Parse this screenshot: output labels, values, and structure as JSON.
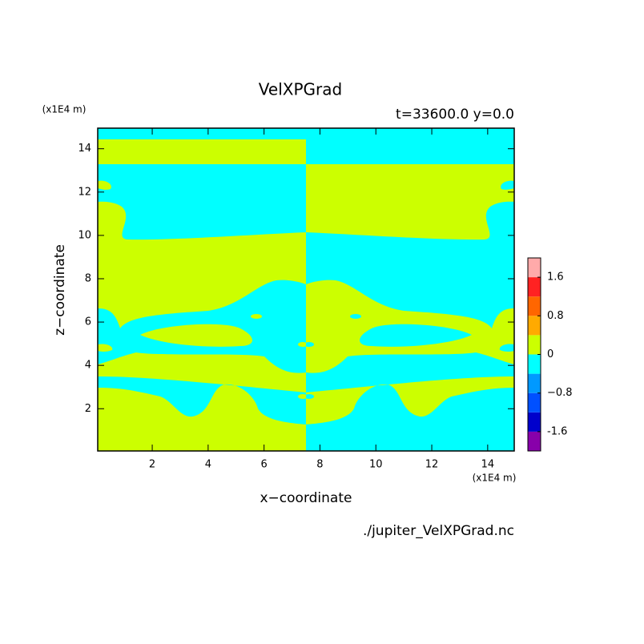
{
  "chart_data": {
    "type": "contour",
    "title": "VelXPGrad",
    "subtitle": "t=33600.0 y=0.0",
    "x_label": "x−coordinate",
    "y_label": "z−coordinate",
    "x_unit": "(x1E4 m)",
    "y_unit": "(x1E4 m)",
    "source": "./jupiter_VelXPGrad.nc",
    "xlim": [
      0.05,
      14.95
    ],
    "ylim": [
      0.05,
      14.95
    ],
    "xticks": [
      2,
      4,
      6,
      8,
      10,
      12,
      14
    ],
    "yticks": [
      2,
      4,
      6,
      8,
      10,
      12,
      14
    ],
    "colorbar": {
      "levels": [
        -2,
        -1.6,
        -1.2,
        -0.8,
        -0.4,
        0,
        0.4,
        0.8,
        1.2,
        1.6,
        2
      ],
      "colors": [
        "#8800aa",
        "#0000cc",
        "#0050ff",
        "#0099ff",
        "#00ffff",
        "#ccff00",
        "#ffaa00",
        "#ff6600",
        "#ff2222",
        "#ffaaaa"
      ],
      "ticks": [
        -1.6,
        {
          "value": -0.8,
          "label": "−0.8"
        },
        0,
        0.8,
        1.6
      ]
    }
  }
}
